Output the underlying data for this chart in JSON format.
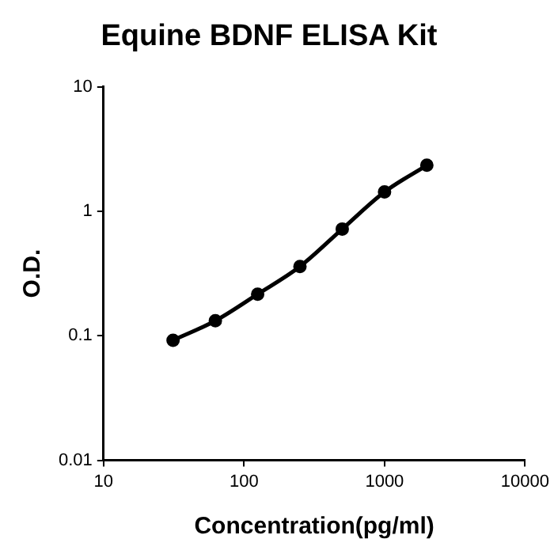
{
  "chart_data": {
    "type": "line",
    "title": "Equine BDNF ELISA Kit",
    "xlabel": "Concentration(pg/ml)",
    "ylabel": "O.D.",
    "x": [
      31.25,
      62.5,
      125,
      250,
      500,
      1000,
      2000
    ],
    "series": [
      {
        "color": "#000000",
        "values": [
          0.092,
          0.132,
          0.216,
          0.36,
          0.72,
          1.43,
          2.34
        ]
      }
    ],
    "log": "xy",
    "xlim": [
      10,
      10000
    ],
    "ylim": [
      0.01,
      10
    ],
    "xticks": [
      10,
      100,
      1000,
      10000
    ],
    "yticks": [
      0.01,
      0.1,
      1,
      10
    ],
    "grid": false,
    "legend": false,
    "marker": "circle",
    "line_style": "solid"
  }
}
